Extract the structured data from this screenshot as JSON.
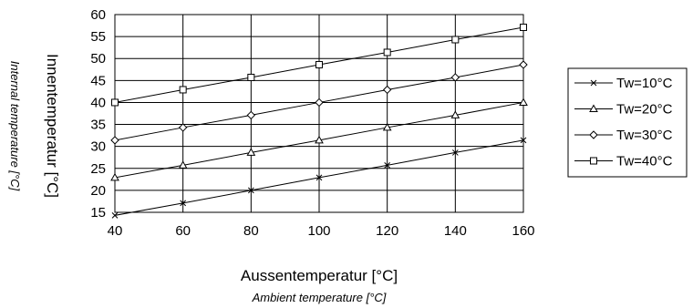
{
  "chart_data": {
    "type": "line",
    "title": "",
    "xlabel": "Aussentemperatur [°C]",
    "xlabel_sub": "Ambient temperature [°C]",
    "ylabel": "Innentemperatur [°C]",
    "ylabel_sub": "Internal temperature [°C]",
    "x": [
      40,
      60,
      80,
      100,
      120,
      140,
      160
    ],
    "xlim": [
      40,
      160
    ],
    "ylim": [
      15,
      60
    ],
    "xticks": [
      "40",
      "60",
      "80",
      "100",
      "120",
      "140",
      "160"
    ],
    "yticks": [
      "15",
      "20",
      "25",
      "30",
      "35",
      "40",
      "45",
      "50",
      "55",
      "60"
    ],
    "grid": "horizontal and vertical",
    "legend_position": "right",
    "series": [
      {
        "name": "Tw=10°C",
        "marker": "x",
        "values": [
          14.3,
          17.1,
          20.0,
          22.9,
          25.7,
          28.6,
          31.4
        ]
      },
      {
        "name": "Tw=20°C",
        "marker": "triangle",
        "values": [
          22.9,
          25.7,
          28.6,
          31.4,
          34.3,
          37.1,
          40.0
        ]
      },
      {
        "name": "Tw=30°C",
        "marker": "diamond",
        "values": [
          31.4,
          34.3,
          37.1,
          40.0,
          42.9,
          45.7,
          48.6
        ]
      },
      {
        "name": "Tw=40°C",
        "marker": "square",
        "values": [
          40.0,
          42.9,
          45.7,
          48.6,
          51.4,
          54.3,
          57.1
        ]
      }
    ]
  }
}
